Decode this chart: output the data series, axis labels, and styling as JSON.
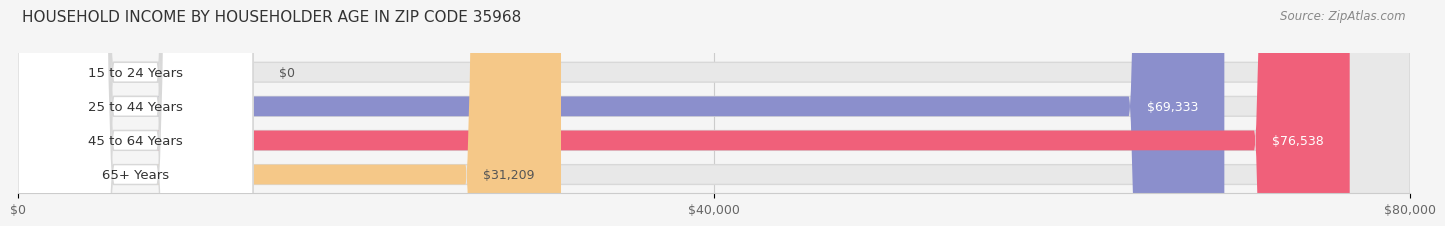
{
  "title": "HOUSEHOLD INCOME BY HOUSEHOLDER AGE IN ZIP CODE 35968",
  "source": "Source: ZipAtlas.com",
  "categories": [
    "15 to 24 Years",
    "25 to 44 Years",
    "45 to 64 Years",
    "65+ Years"
  ],
  "values": [
    0,
    69333,
    76538,
    31209
  ],
  "bar_colors": [
    "#7dd8d8",
    "#8b8fcc",
    "#f0607a",
    "#f5c888"
  ],
  "value_labels": [
    "$0",
    "$69,333",
    "$76,538",
    "$31,209"
  ],
  "label_inside_colors": [
    "#555555",
    "#ffffff",
    "#ffffff",
    "#555555"
  ],
  "xlim": [
    0,
    80000
  ],
  "xticks": [
    0,
    40000,
    80000
  ],
  "xticklabels": [
    "$0",
    "$40,000",
    "$80,000"
  ],
  "background_color": "#f5f5f5",
  "bar_bg_color": "#e8e8e8",
  "bar_bg_border": "#d8d8d8",
  "title_fontsize": 11,
  "source_fontsize": 8.5,
  "label_fontsize": 9,
  "tick_fontsize": 9,
  "category_fontsize": 9.5,
  "bar_height": 0.58,
  "fig_width": 14.06,
  "fig_height": 2.33
}
